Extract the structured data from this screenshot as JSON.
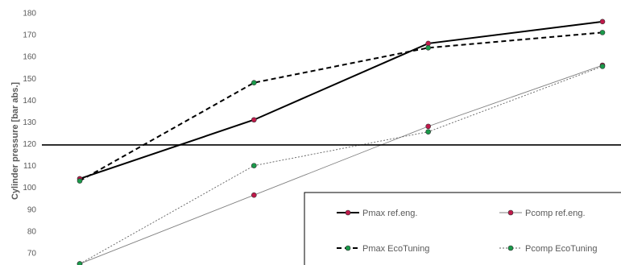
{
  "chart_data": {
    "type": "line",
    "title": "",
    "xlabel": "",
    "ylabel": "Cylinder pressure [bar abs.]",
    "x": [
      1,
      2,
      3,
      4
    ],
    "ylim": [
      63,
      180
    ],
    "yticks": [
      70,
      80,
      90,
      100,
      110,
      120,
      130,
      140,
      150,
      160,
      170,
      180
    ],
    "grid": false,
    "legend_position": "bottom-right",
    "reference_line": 119.5,
    "series": [
      {
        "name": "Pmax ref.eng.",
        "values": [
          104,
          131,
          166,
          176
        ],
        "color": "#000000",
        "marker_color": "#c0194a",
        "line": "solid-thick"
      },
      {
        "name": "Pcomp ref.eng.",
        "values": [
          65,
          96.5,
          128,
          156
        ],
        "color": "#808080",
        "marker_color": "#c0194a",
        "line": "solid-thin"
      },
      {
        "name": "Pmax EcoTuning",
        "values": [
          103,
          148,
          164,
          171
        ],
        "color": "#000000",
        "marker_color": "#1a9a4a",
        "line": "dashed-thick"
      },
      {
        "name": "Pcomp EcoTuning",
        "values": [
          65,
          110,
          125.5,
          155.5
        ],
        "color": "#606060",
        "marker_color": "#1a9a4a",
        "line": "dotted-thin"
      }
    ]
  }
}
